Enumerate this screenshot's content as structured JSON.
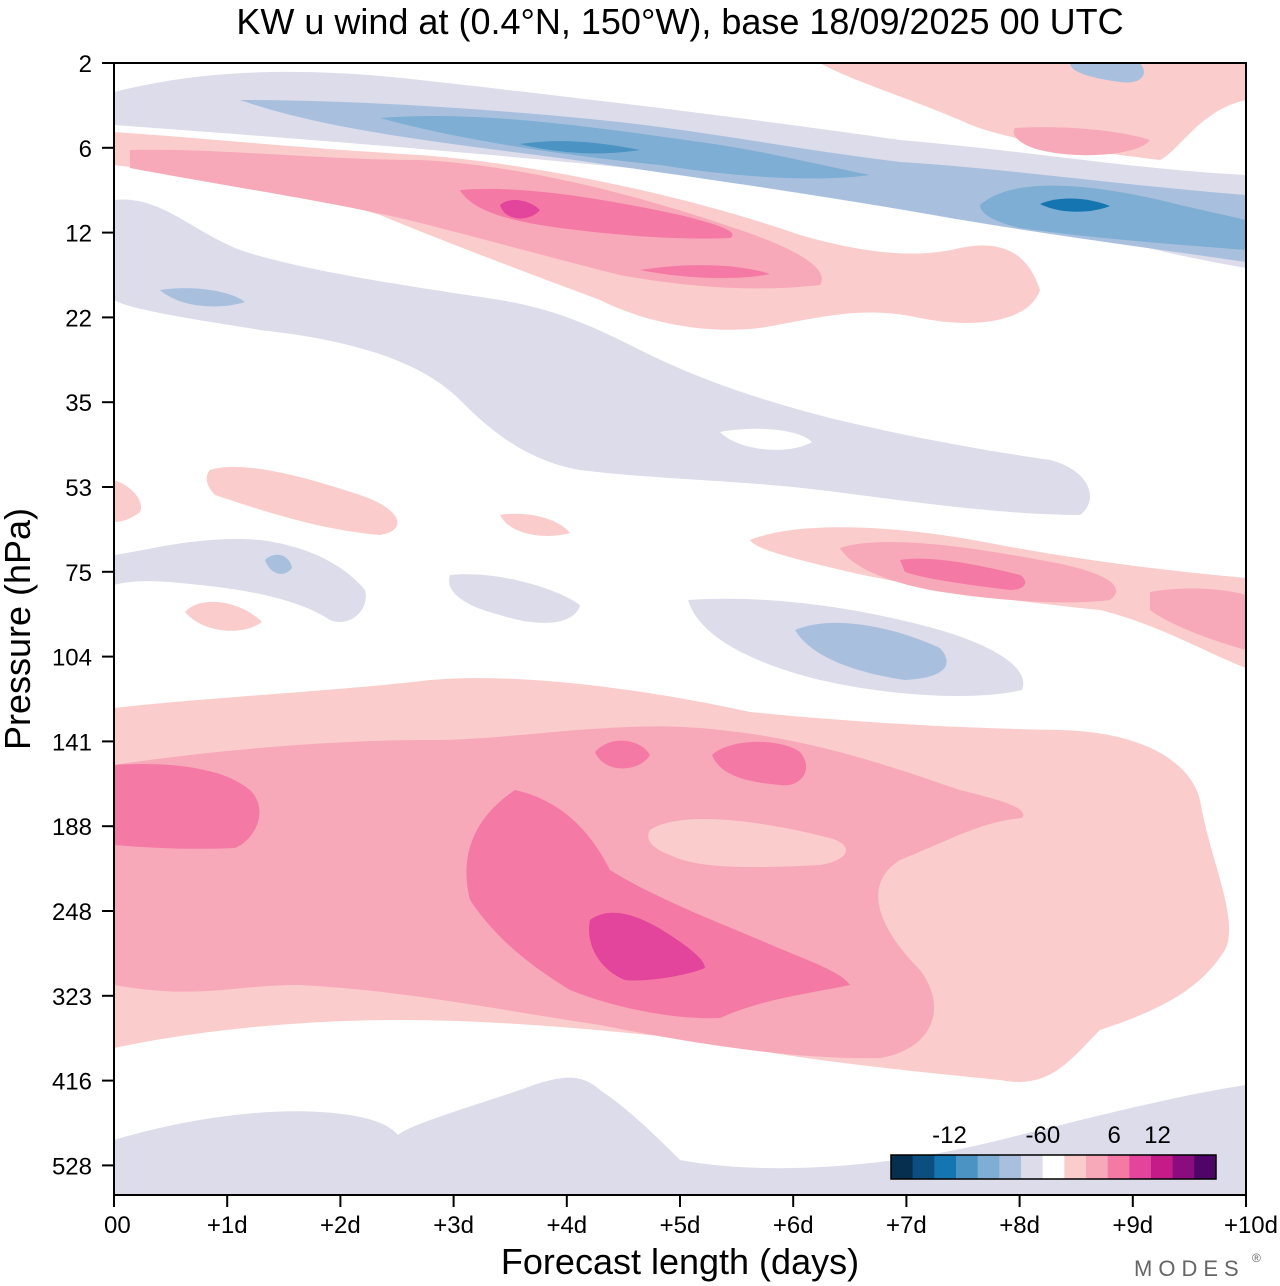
{
  "chart_data": {
    "type": "heatmap",
    "title": "KW u wind at (0.4°N, 150°W),  base 18/09/2025  00 UTC",
    "xlabel": "Forecast length (days)",
    "ylabel": "Pressure (hPa)",
    "x_ticks": [
      "00",
      "+1d",
      "+2d",
      "+3d",
      "+4d",
      "+5d",
      "+6d",
      "+7d",
      "+8d",
      "+9d",
      "+10d"
    ],
    "y_ticks": [
      "2",
      "6",
      "12",
      "22",
      "35",
      "53",
      "75",
      "104",
      "141",
      "188",
      "248",
      "323",
      "416",
      "528"
    ],
    "xlim_days": [
      0,
      10
    ],
    "y_scale": "log-pressure (top = 2 hPa)",
    "colorbar": {
      "labels": [
        "-12",
        "-6",
        "0",
        "6",
        "12"
      ],
      "levels": [
        -15,
        -13.5,
        -12,
        -10.5,
        -9,
        -7.5,
        -6,
        -4.5,
        -3,
        -1.5,
        1.5,
        3,
        4.5,
        6,
        7.5,
        9,
        10.5,
        12,
        13.5,
        15
      ],
      "colors": [
        "#062f4f",
        "#0a4f80",
        "#1575b0",
        "#4a93c2",
        "#7eaed3",
        "#a8c0de",
        "#dcdceb",
        "#ffffff",
        "#fbcccc",
        "#f7a9b9",
        "#f47aa5",
        "#e3449c",
        "#c41b88",
        "#8b0c7e",
        "#4f0468"
      ]
    },
    "features": [
      {
        "name": "negative band",
        "center_hPa": 6,
        "from_day": 0.5,
        "to_day": 10,
        "min_value": -12
      },
      {
        "name": "positive band",
        "center_hPa": 10,
        "from_day": 0.3,
        "to_day": 8,
        "max_value": 10
      },
      {
        "name": "negative region",
        "center_hPa": 35,
        "from_day": 0.5,
        "to_day": 8.6,
        "min_value": -4
      },
      {
        "name": "positive jet",
        "center_hPa": 75,
        "from_day": 6.7,
        "to_day": 10,
        "max_value": 9
      },
      {
        "name": "negative cell",
        "center_hPa": 100,
        "from_day": 5,
        "to_day": 8,
        "min_value": -6
      },
      {
        "name": "positive mass",
        "center_hPa": 240,
        "from_day": 0,
        "to_day": 10,
        "max_value": 10
      },
      {
        "name": "negative near surface",
        "center_hPa": 528,
        "from_day": 0,
        "to_day": 10,
        "min_value": -3
      }
    ]
  },
  "branding": {
    "logo_text": "MODES",
    "registered_mark": "®"
  }
}
